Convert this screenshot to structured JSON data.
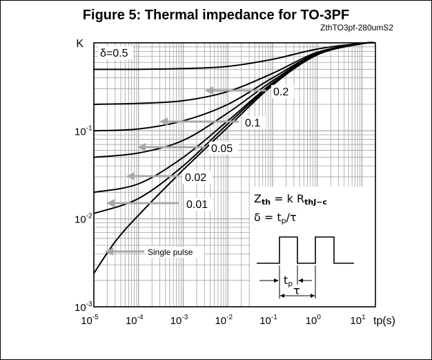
{
  "chart_data": {
    "type": "line",
    "title": "Figure 5: Thermal impedance for TO-3PF",
    "code": "ZthTO3pf-280umS2",
    "ylabel": "K",
    "xlabel": "tp(s)",
    "x_scale": "log",
    "y_scale": "log",
    "xlim": [
      1e-05,
      20
    ],
    "ylim": [
      0.001,
      1
    ],
    "x_tick_labels": [
      {
        "base": "10",
        "exp": "-5",
        "value": 1e-05
      },
      {
        "base": "10",
        "exp": "-4",
        "value": 0.0001
      },
      {
        "base": "10",
        "exp": "-3",
        "value": 0.001
      },
      {
        "base": "10",
        "exp": "-2",
        "value": 0.01
      },
      {
        "base": "10",
        "exp": "-1",
        "value": 0.1
      },
      {
        "base": "10",
        "exp": "0",
        "value": 1
      },
      {
        "base": "10",
        "exp": "1",
        "value": 10
      }
    ],
    "y_tick_labels": [
      {
        "base": "10",
        "exp": "-1",
        "value": 0.1
      },
      {
        "base": "10",
        "exp": "-2",
        "value": 0.01
      },
      {
        "base": "10",
        "exp": "-3",
        "value": 0.001
      }
    ],
    "grid": true,
    "series": [
      {
        "name": "δ=0.5",
        "x": [
          1e-05,
          0.0001,
          0.001,
          0.01,
          0.1,
          1,
          10,
          20
        ],
        "y": [
          0.5,
          0.5,
          0.51,
          0.54,
          0.65,
          0.85,
          0.99,
          1.0
        ]
      },
      {
        "name": "0.2",
        "x": [
          1e-05,
          0.0001,
          0.001,
          0.01,
          0.1,
          1,
          10,
          20
        ],
        "y": [
          0.2,
          0.205,
          0.22,
          0.28,
          0.45,
          0.78,
          0.98,
          1.0
        ]
      },
      {
        "name": "0.1",
        "x": [
          1e-05,
          0.0001,
          0.001,
          0.01,
          0.1,
          1,
          10,
          20
        ],
        "y": [
          0.1,
          0.105,
          0.13,
          0.2,
          0.4,
          0.76,
          0.98,
          1.0
        ]
      },
      {
        "name": "0.05",
        "x": [
          1e-05,
          0.0001,
          0.001,
          0.01,
          0.1,
          1,
          10,
          20
        ],
        "y": [
          0.05,
          0.056,
          0.078,
          0.16,
          0.37,
          0.75,
          0.98,
          1.0
        ]
      },
      {
        "name": "0.02",
        "x": [
          1e-05,
          0.0001,
          0.001,
          0.01,
          0.1,
          1,
          10,
          20
        ],
        "y": [
          0.02,
          0.025,
          0.05,
          0.13,
          0.35,
          0.74,
          0.98,
          1.0
        ]
      },
      {
        "name": "0.01",
        "x": [
          1e-05,
          0.0001,
          0.001,
          0.01,
          0.1,
          1,
          10,
          20
        ],
        "y": [
          0.0115,
          0.017,
          0.04,
          0.12,
          0.34,
          0.74,
          0.98,
          1.0
        ]
      },
      {
        "name": "Single pulse",
        "x": [
          1e-05,
          3e-05,
          0.0001,
          0.001,
          0.01,
          0.1,
          1,
          10,
          20
        ],
        "y": [
          0.0024,
          0.0055,
          0.011,
          0.036,
          0.11,
          0.33,
          0.73,
          0.98,
          1.0
        ]
      }
    ],
    "annotations": {
      "formula_line1": {
        "main": "Z",
        "sub1": "th",
        "mid": " = k R",
        "sub2": "thJ−c"
      },
      "formula_line2": {
        "main": "δ = t",
        "sub": "p",
        "rest": "/τ"
      },
      "pulse_tp_label": {
        "main": "t",
        "sub": "p"
      },
      "pulse_tau_label": "τ"
    }
  }
}
